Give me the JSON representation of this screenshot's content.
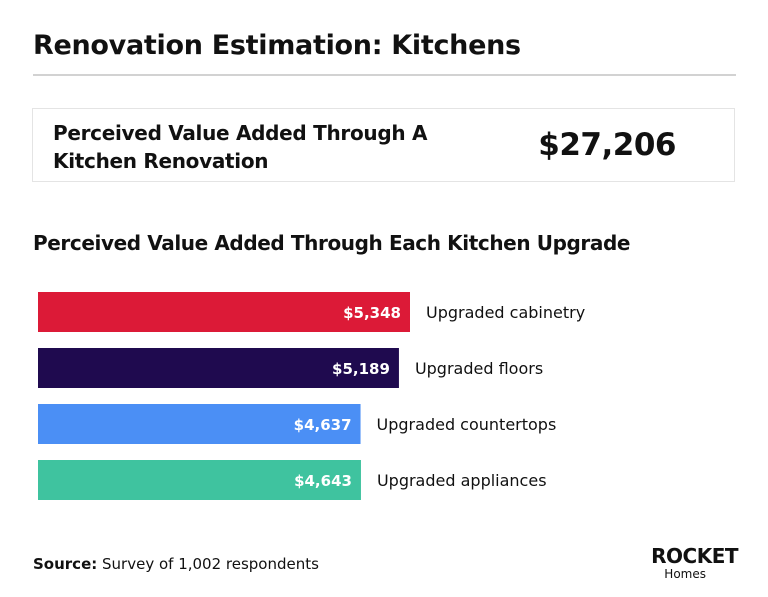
{
  "header": {
    "title": "Renovation Estimation: Kitchens"
  },
  "summary": {
    "label": "Perceived Value Added Through A Kitchen Renovation",
    "value": "$27,206"
  },
  "chart_data": {
    "type": "bar",
    "orientation": "horizontal",
    "title": "Perceived Value Added Through Each Kitchen Upgrade",
    "categories": [
      "Upgraded cabinetry",
      "Upgraded floors",
      "Upgraded countertops",
      "Upgraded appliances"
    ],
    "values": [
      5348,
      5189,
      4637,
      4643
    ],
    "value_labels": [
      "$5,348",
      "$5,189",
      "$4,637",
      "$4,643"
    ],
    "colors": [
      "#dc1a37",
      "#1f0a4f",
      "#4b8ff5",
      "#3fc39f"
    ],
    "xlabel": "",
    "ylabel": "",
    "xlim": [
      0,
      5348
    ],
    "grid": false
  },
  "footer": {
    "source_label": "Source:",
    "source_text": " Survey of 1,002 respondents"
  },
  "logo": {
    "brand": "ROCKET",
    "sub": "Homes"
  }
}
